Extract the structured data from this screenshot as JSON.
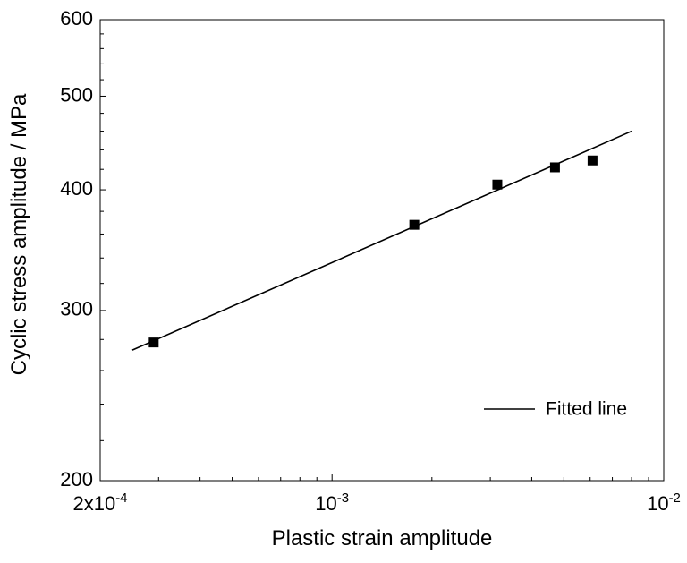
{
  "chart_data": {
    "type": "scatter",
    "xlabel": "Plastic strain amplitude",
    "ylabel": "Cyclic stress amplitude / MPa",
    "xscale": "log",
    "yscale": "log",
    "xlim": [
      0.0002,
      0.01
    ],
    "ylim": [
      200,
      600
    ],
    "x_ticks": [
      {
        "value": 0.0002,
        "base": "2x10",
        "exp": "-4"
      },
      {
        "value": 0.001,
        "base": "10",
        "exp": "-3"
      },
      {
        "value": 0.01,
        "base": "10",
        "exp": "-2"
      }
    ],
    "y_ticks": [
      {
        "value": 200,
        "label": "200"
      },
      {
        "value": 300,
        "label": "300"
      },
      {
        "value": 400,
        "label": "400"
      },
      {
        "value": 500,
        "label": "500"
      },
      {
        "value": 600,
        "label": "600"
      }
    ],
    "points": [
      {
        "x": 0.00029,
        "y": 278
      },
      {
        "x": 0.00177,
        "y": 368
      },
      {
        "x": 0.00315,
        "y": 405
      },
      {
        "x": 0.0047,
        "y": 422
      },
      {
        "x": 0.0061,
        "y": 429
      }
    ],
    "fitted_line": {
      "name": "Fitted line",
      "x": [
        0.00025,
        0.008
      ],
      "y": [
        273,
        460
      ]
    },
    "legend": {
      "position": "bottom-right",
      "entries": [
        "Fitted line"
      ]
    },
    "grid": false,
    "colors": {
      "line": "#000000",
      "marker": "#000000",
      "background": "#ffffff"
    }
  }
}
